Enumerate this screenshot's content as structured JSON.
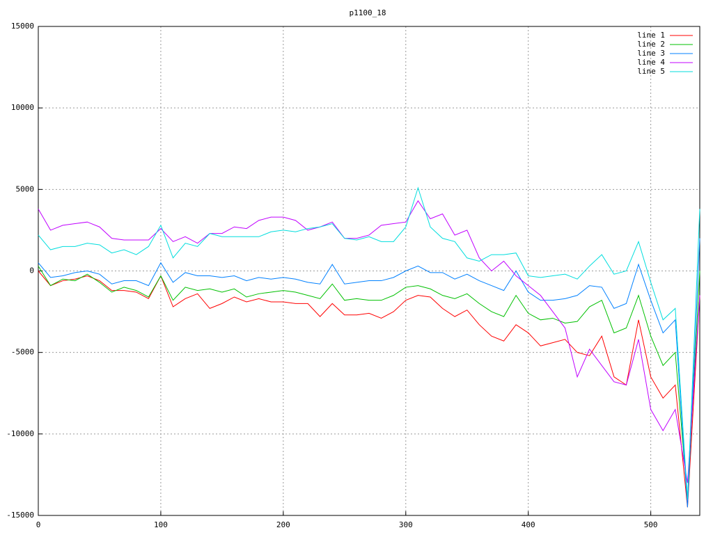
{
  "chart_data": {
    "type": "line",
    "title": "p1100_18",
    "x": [
      0,
      10,
      20,
      30,
      40,
      50,
      60,
      70,
      80,
      90,
      100,
      110,
      120,
      130,
      140,
      150,
      160,
      170,
      180,
      190,
      200,
      210,
      220,
      230,
      240,
      250,
      260,
      270,
      280,
      290,
      300,
      310,
      320,
      330,
      340,
      350,
      360,
      370,
      380,
      390,
      400,
      410,
      420,
      430,
      440,
      450,
      460,
      470,
      480,
      490,
      500,
      510,
      520,
      530,
      540
    ],
    "xlim": [
      0,
      540
    ],
    "xticks": [
      0,
      100,
      200,
      300,
      400,
      500
    ],
    "ylim": [
      -15000,
      15000
    ],
    "yticks": [
      -15000,
      -10000,
      -5000,
      0,
      5000,
      10000,
      15000
    ],
    "grid": true,
    "legend": "top-right",
    "series": [
      {
        "name": "line 1",
        "color": "#ff0000",
        "values": [
          0,
          -900,
          -600,
          -500,
          -300,
          -600,
          -1200,
          -1200,
          -1300,
          -1700,
          -300,
          -2200,
          -1700,
          -1400,
          -2300,
          -2000,
          -1600,
          -1900,
          -1700,
          -1900,
          -1900,
          -2000,
          -2000,
          -2800,
          -2000,
          -2700,
          -2700,
          -2600,
          -2900,
          -2500,
          -1800,
          -1500,
          -1600,
          -2300,
          -2800,
          -2400,
          -3300,
          -4000,
          -4300,
          -3300,
          -3800,
          -4600,
          -4400,
          -4200,
          -5000,
          -5200,
          -4000,
          -6500,
          -7000,
          -3000,
          -6500,
          -7800,
          -7000,
          -14500,
          -1500
        ]
      },
      {
        "name": "line 2",
        "color": "#00c000",
        "values": [
          300,
          -900,
          -500,
          -600,
          -200,
          -700,
          -1300,
          -1000,
          -1200,
          -1600,
          -300,
          -1800,
          -1000,
          -1200,
          -1100,
          -1300,
          -1100,
          -1600,
          -1400,
          -1300,
          -1200,
          -1300,
          -1500,
          -1700,
          -800,
          -1800,
          -1700,
          -1800,
          -1800,
          -1500,
          -1000,
          -900,
          -1100,
          -1500,
          -1700,
          -1400,
          -2000,
          -2500,
          -2800,
          -1500,
          -2600,
          -3000,
          -2900,
          -3200,
          -3100,
          -2200,
          -1800,
          -3800,
          -3500,
          -1500,
          -4000,
          -5800,
          -5000,
          -14000,
          0
        ]
      },
      {
        "name": "line 3",
        "color": "#0080ff",
        "values": [
          500,
          -400,
          -300,
          -100,
          0,
          -200,
          -800,
          -600,
          -600,
          -900,
          500,
          -700,
          -100,
          -300,
          -300,
          -400,
          -300,
          -600,
          -400,
          -500,
          -400,
          -500,
          -700,
          -800,
          400,
          -800,
          -700,
          -600,
          -600,
          -400,
          0,
          300,
          -100,
          -100,
          -500,
          -200,
          -600,
          -900,
          -1200,
          0,
          -1300,
          -1800,
          -1800,
          -1700,
          -1500,
          -900,
          -1000,
          -2300,
          -2000,
          400,
          -1800,
          -3800,
          -3000,
          -14500,
          2000
        ]
      },
      {
        "name": "line 4",
        "color": "#c000ff",
        "values": [
          3800,
          2500,
          2800,
          2900,
          3000,
          2700,
          2000,
          1900,
          1900,
          1900,
          2600,
          1800,
          2100,
          1700,
          2300,
          2300,
          2700,
          2600,
          3100,
          3300,
          3300,
          3100,
          2500,
          2700,
          3000,
          2000,
          2000,
          2200,
          2800,
          2900,
          3000,
          4300,
          3200,
          3500,
          2200,
          2500,
          800,
          0,
          600,
          -300,
          -900,
          -1500,
          -2500,
          -3500,
          -6500,
          -4800,
          -5800,
          -6800,
          -7000,
          -4200,
          -8500,
          -9800,
          -8500,
          -13000,
          -1500
        ]
      },
      {
        "name": "line 5",
        "color": "#00dddd",
        "values": [
          2200,
          1300,
          1500,
          1500,
          1700,
          1600,
          1100,
          1300,
          1000,
          1500,
          2800,
          800,
          1700,
          1500,
          2300,
          2100,
          2100,
          2100,
          2100,
          2400,
          2500,
          2400,
          2600,
          2700,
          2900,
          2000,
          1900,
          2100,
          1800,
          1800,
          2700,
          5100,
          2700,
          2000,
          1800,
          800,
          600,
          1000,
          1000,
          1100,
          -300,
          -400,
          -300,
          -200,
          -500,
          300,
          1000,
          -200,
          0,
          1800,
          -700,
          -3000,
          -2300,
          -14000,
          3800
        ]
      }
    ]
  }
}
